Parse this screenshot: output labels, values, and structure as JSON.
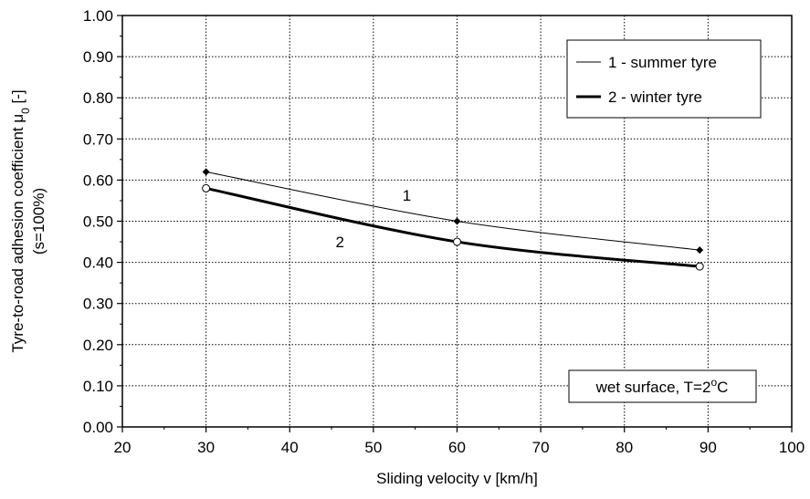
{
  "chart_data": {
    "type": "line",
    "title": "",
    "xlabel": "Sliding velocity v [km/h]",
    "ylabel_line1": "Tyre-to-road adhesion coefficient  μ",
    "ylabel_sub": "0",
    "ylabel_unit": " [-]",
    "ylabel_line2": "(s=100%)",
    "xlim": [
      20,
      100
    ],
    "ylim": [
      0,
      1
    ],
    "x_ticks": [
      "20",
      "30",
      "40",
      "50",
      "60",
      "70",
      "80",
      "90",
      "100"
    ],
    "y_ticks": [
      "0.00",
      "0.10",
      "0.20",
      "0.30",
      "0.40",
      "0.50",
      "0.60",
      "0.70",
      "0.80",
      "0.90",
      "1.00"
    ],
    "grid": true,
    "legend_position": "top-right",
    "series": [
      {
        "name": "1 - summer tyre",
        "label": "1",
        "color": "#000000",
        "marker": "filled-diamond",
        "x": [
          30,
          60,
          89
        ],
        "y": [
          0.62,
          0.5,
          0.43
        ]
      },
      {
        "name": "2 - winter tyre",
        "label": "2",
        "color": "#000000",
        "marker": "open-circle",
        "x": [
          30,
          60,
          89
        ],
        "y": [
          0.58,
          0.45,
          0.39
        ]
      }
    ],
    "annotation": {
      "prefix": "wet surface, T=2",
      "superscript": "o",
      "suffix": "C",
      "position": "bottom-right"
    }
  }
}
